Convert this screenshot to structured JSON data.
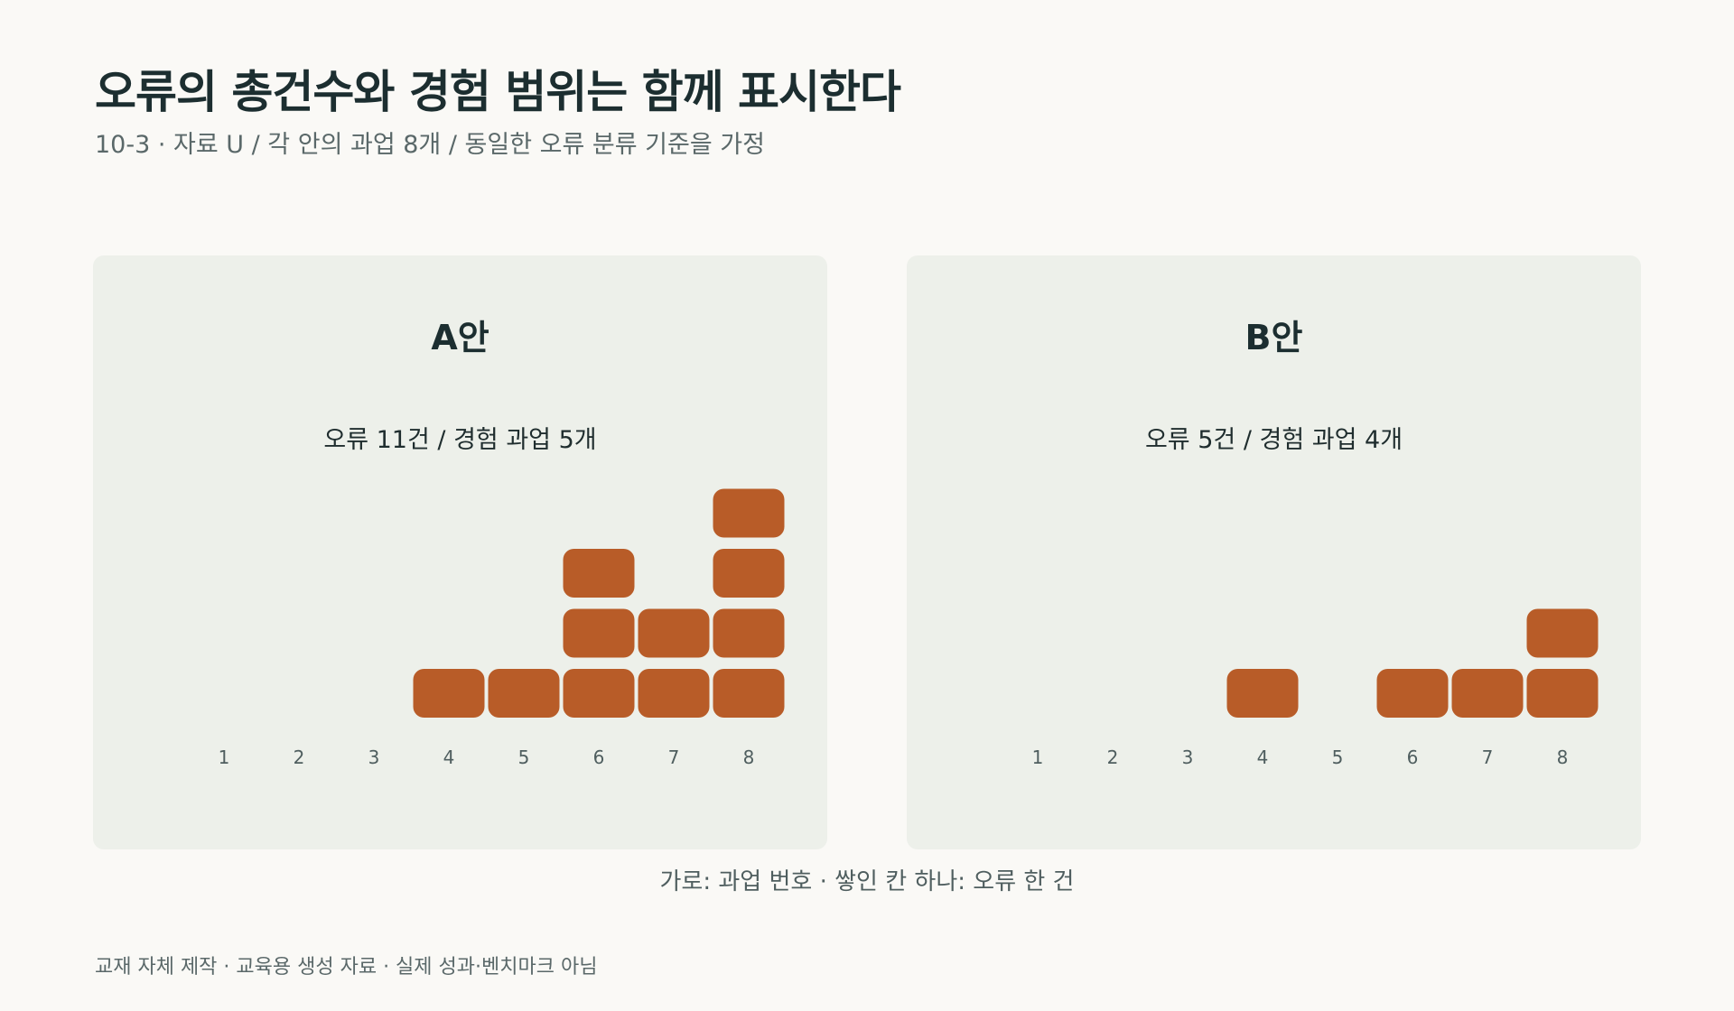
{
  "header": {
    "title": "오류의 총건수와 경험 범위는 함께 표시한다",
    "subtitle": "10-3 · 자료 U / 각 안의 과업 8개 / 동일한 오류 분류 기준을 가정"
  },
  "panels": [
    {
      "title": "A안",
      "summary": "오류 11건 / 경험 과업 5개"
    },
    {
      "title": "B안",
      "summary": "오류 5건 / 경험 과업 4개"
    }
  ],
  "caption": "가로: 과업 번호 · 쌓인 칸 하나: 오류 한 건",
  "footer": "교재 자체 제작 · 교육용 생성 자료 · 실제 성과·벤치마크 아님",
  "colors": {
    "block": "#b85c28",
    "panel_bg": "#edf0ea",
    "tick_text": "#4f5e5f"
  },
  "chart_data": [
    {
      "type": "bar",
      "title": "A안",
      "categories": [
        "1",
        "2",
        "3",
        "4",
        "5",
        "6",
        "7",
        "8"
      ],
      "values": [
        0,
        0,
        0,
        1,
        1,
        3,
        2,
        4
      ],
      "xlabel": "가로: 과업 번호",
      "ylabel": "",
      "ylim": [
        0,
        4
      ]
    },
    {
      "type": "bar",
      "title": "B안",
      "categories": [
        "1",
        "2",
        "3",
        "4",
        "5",
        "6",
        "7",
        "8"
      ],
      "values": [
        0,
        0,
        0,
        1,
        0,
        1,
        1,
        2
      ],
      "xlabel": "가로: 과업 번호",
      "ylabel": "",
      "ylim": [
        0,
        4
      ]
    }
  ]
}
